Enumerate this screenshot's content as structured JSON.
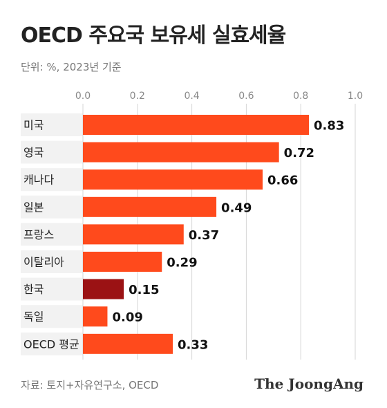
{
  "header": {
    "title": "OECD 주요국 보유세 실효세율",
    "subtitle": "단위: %, 2023년 기준"
  },
  "footer": {
    "source": "자료: 토지+자유연구소, OECD",
    "brand": "The JoongAng"
  },
  "colors": {
    "bar": "#ff4a1c",
    "highlight": "#9b1214",
    "grid": "#d6d6d6",
    "label_bg": "#f2f2f2"
  },
  "chart_data": {
    "type": "bar",
    "orientation": "horizontal",
    "title": "OECD 주요국 보유세 실효세율",
    "subtitle": "단위: %, 2023년 기준",
    "categories": [
      "미국",
      "영국",
      "캐나다",
      "일본",
      "프랑스",
      "이탈리아",
      "한국",
      "독일",
      "OECD 평균"
    ],
    "values": [
      0.83,
      0.72,
      0.66,
      0.49,
      0.37,
      0.29,
      0.15,
      0.09,
      0.33
    ],
    "value_labels": [
      "0.83",
      "0.72",
      "0.66",
      "0.49",
      "0.37",
      "0.29",
      "0.15",
      "0.09",
      "0.33"
    ],
    "highlight_category": "한국",
    "xlim": [
      0,
      1.0
    ],
    "xticks": [
      0.0,
      0.2,
      0.4,
      0.6,
      0.8,
      1.0
    ],
    "xtick_labels": [
      "0.0",
      "0.2",
      "0.4",
      "0.6",
      "0.8",
      "1.0"
    ],
    "xaxis_position": "top",
    "grid": true,
    "legend": "none"
  }
}
